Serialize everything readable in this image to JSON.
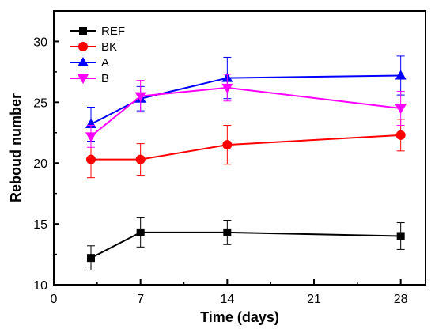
{
  "chart_data": {
    "type": "line",
    "title": "",
    "xlabel": "Time (days)",
    "ylabel": "Reboud number",
    "xlim": [
      0,
      30
    ],
    "ylim": [
      10,
      32.5
    ],
    "xticks": [
      0,
      7,
      14,
      21,
      28
    ],
    "yticks": [
      10,
      15,
      20,
      25,
      30
    ],
    "x": [
      3,
      7,
      14,
      28
    ],
    "legend_position": "top-left",
    "grid": false,
    "series": [
      {
        "name": "REF",
        "color": "#000000",
        "marker": "square",
        "values": [
          12.2,
          14.3,
          14.3,
          14.0
        ],
        "errors": [
          1.0,
          1.2,
          1.0,
          1.1
        ]
      },
      {
        "name": "BK",
        "color": "#ff0000",
        "marker": "circle",
        "values": [
          20.3,
          20.3,
          21.5,
          22.3
        ],
        "errors": [
          1.5,
          1.3,
          1.6,
          1.3
        ]
      },
      {
        "name": "A",
        "color": "#0000ff",
        "marker": "triangle-up",
        "values": [
          23.2,
          25.3,
          27.0,
          27.2
        ],
        "errors": [
          1.4,
          1.0,
          1.7,
          1.6
        ]
      },
      {
        "name": "B",
        "color": "#ff00ff",
        "marker": "triangle-down",
        "values": [
          22.2,
          25.5,
          26.2,
          24.5
        ],
        "errors": [
          0.9,
          1.3,
          1.1,
          1.4
        ]
      }
    ]
  }
}
